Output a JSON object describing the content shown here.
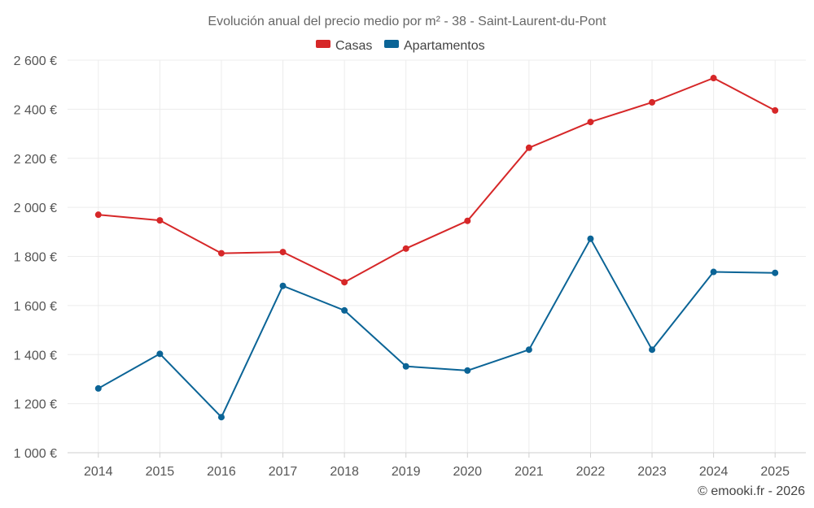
{
  "chart_data": {
    "type": "line",
    "title": "Evolución anual del precio medio por m² - 38 - Saint-Laurent-du-Pont",
    "categories": [
      "2014",
      "2015",
      "2016",
      "2017",
      "2018",
      "2019",
      "2020",
      "2021",
      "2022",
      "2023",
      "2024",
      "2025"
    ],
    "ylim": [
      1000,
      2600
    ],
    "yticks": [
      1000,
      1200,
      1400,
      1600,
      1800,
      2000,
      2200,
      2400,
      2600
    ],
    "ytick_labels": [
      "1 000 €",
      "1 200 €",
      "1 400 €",
      "1 600 €",
      "1 800 €",
      "2 000 €",
      "2 200 €",
      "2 400 €",
      "2 600 €"
    ],
    "grid": true,
    "legend_position": "top-center",
    "series": [
      {
        "name": "Casas",
        "color": "#d62728",
        "values": [
          1970,
          1947,
          1813,
          1818,
          1695,
          1832,
          1945,
          2243,
          2348,
          2428,
          2527,
          2395
        ]
      },
      {
        "name": "Apartamentos",
        "color": "#0b6496",
        "values": [
          1262,
          1403,
          1145,
          1680,
          1580,
          1352,
          1335,
          1420,
          1872,
          1420,
          1737,
          1733
        ]
      }
    ]
  },
  "credit": "© emooki.fr - 2026"
}
